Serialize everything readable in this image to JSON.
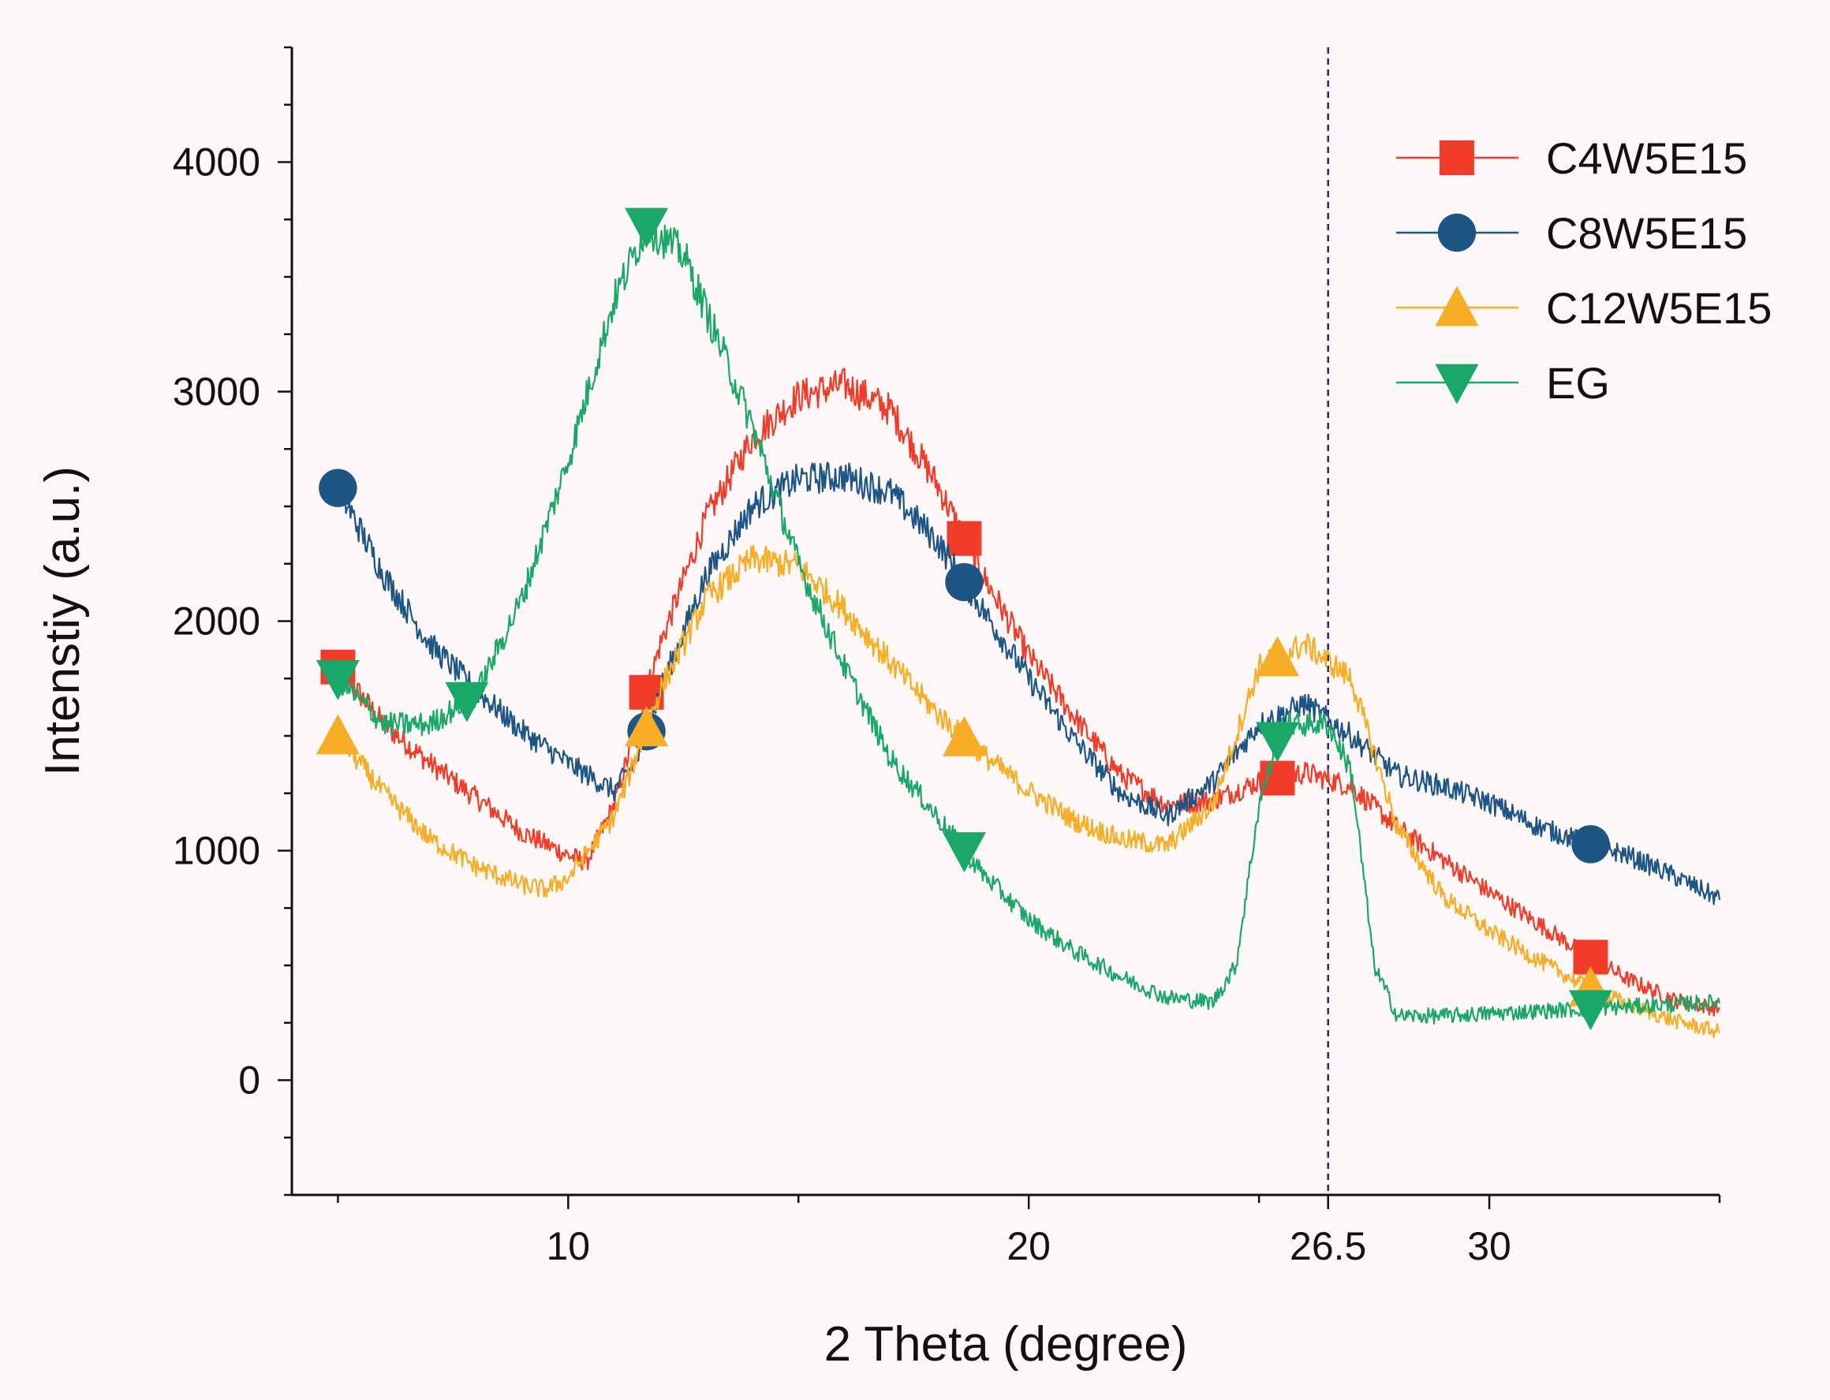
{
  "chart_data": {
    "type": "line",
    "xlabel": "2 Theta (degree)",
    "ylabel": "Intenstiy (a.u.)",
    "xlim": [
      4,
      35
    ],
    "ylim": [
      -500,
      4500
    ],
    "x_ticks": [
      10,
      20,
      26.5,
      30
    ],
    "y_ticks": [
      0,
      1000,
      2000,
      3000,
      4000
    ],
    "x_tick_labels": [
      "10",
      "20",
      "26.5",
      "30"
    ],
    "y_tick_labels": [
      "0",
      "1000",
      "2000",
      "3000",
      "4000"
    ],
    "reference_line": {
      "x": 26.5,
      "style": "dashed",
      "color": "#1f2a7a"
    },
    "legend_position": "top-right",
    "series": [
      {
        "name": "C4W5E15",
        "color": "#f03c28",
        "marker": "square",
        "points": [
          [
            5,
            1800
          ],
          [
            6,
            1550
          ],
          [
            7,
            1380
          ],
          [
            8,
            1230
          ],
          [
            9,
            1080
          ],
          [
            10,
            980
          ],
          [
            10.4,
            950
          ],
          [
            11,
            1200
          ],
          [
            11.5,
            1550
          ],
          [
            12,
            1900
          ],
          [
            13,
            2450
          ],
          [
            14,
            2800
          ],
          [
            15,
            2980
          ],
          [
            16,
            3030
          ],
          [
            17,
            2920
          ],
          [
            18,
            2600
          ],
          [
            19,
            2200
          ],
          [
            20,
            1850
          ],
          [
            21,
            1580
          ],
          [
            22,
            1330
          ],
          [
            23,
            1200
          ],
          [
            24,
            1220
          ],
          [
            25,
            1300
          ],
          [
            26,
            1340
          ],
          [
            27,
            1280
          ],
          [
            28,
            1100
          ],
          [
            29,
            960
          ],
          [
            30,
            820
          ],
          [
            31,
            690
          ],
          [
            32,
            560
          ],
          [
            33,
            440
          ],
          [
            34,
            350
          ],
          [
            35,
            310
          ]
        ],
        "markers_x": [
          5,
          11.7,
          18.6,
          25.4,
          32.2
        ]
      },
      {
        "name": "C8W5E15",
        "color": "#1d5585",
        "marker": "circle",
        "points": [
          [
            5,
            2580
          ],
          [
            6,
            2200
          ],
          [
            7,
            1900
          ],
          [
            8,
            1700
          ],
          [
            9,
            1520
          ],
          [
            10,
            1380
          ],
          [
            11,
            1260
          ],
          [
            11.5,
            1400
          ],
          [
            12,
            1700
          ],
          [
            13,
            2200
          ],
          [
            14,
            2500
          ],
          [
            15,
            2620
          ],
          [
            16,
            2630
          ],
          [
            17,
            2560
          ],
          [
            18,
            2350
          ],
          [
            19,
            2050
          ],
          [
            20,
            1750
          ],
          [
            21,
            1480
          ],
          [
            22,
            1250
          ],
          [
            23,
            1150
          ],
          [
            24,
            1300
          ],
          [
            25,
            1550
          ],
          [
            26,
            1640
          ],
          [
            27,
            1500
          ],
          [
            28,
            1330
          ],
          [
            29,
            1280
          ],
          [
            30,
            1210
          ],
          [
            31,
            1110
          ],
          [
            32,
            1040
          ],
          [
            33,
            980
          ],
          [
            34,
            890
          ],
          [
            35,
            790
          ]
        ],
        "markers_x": [
          5,
          11.7,
          18.6,
          32.2
        ]
      },
      {
        "name": "C12W5E15",
        "color": "#f7ad25",
        "marker": "triangle-up",
        "points": [
          [
            5,
            1500
          ],
          [
            6,
            1250
          ],
          [
            7,
            1050
          ],
          [
            8,
            930
          ],
          [
            9,
            850
          ],
          [
            9.5,
            830
          ],
          [
            10,
            880
          ],
          [
            11,
            1150
          ],
          [
            12,
            1700
          ],
          [
            13,
            2100
          ],
          [
            14,
            2270
          ],
          [
            15,
            2240
          ],
          [
            16,
            2050
          ],
          [
            17,
            1820
          ],
          [
            18,
            1600
          ],
          [
            19,
            1420
          ],
          [
            20,
            1260
          ],
          [
            21,
            1130
          ],
          [
            22,
            1050
          ],
          [
            23,
            1020
          ],
          [
            24,
            1200
          ],
          [
            25,
            1800
          ],
          [
            26,
            1900
          ],
          [
            27,
            1750
          ],
          [
            28,
            1100
          ],
          [
            29,
            800
          ],
          [
            30,
            650
          ],
          [
            31,
            530
          ],
          [
            32,
            420
          ],
          [
            33,
            330
          ],
          [
            34,
            260
          ],
          [
            35,
            210
          ]
        ],
        "markers_x": [
          5,
          11.7,
          18.6,
          25.4,
          32.2
        ]
      },
      {
        "name": "EG",
        "color": "#1aa868",
        "marker": "triangle-down",
        "points": [
          [
            5,
            1750
          ],
          [
            6,
            1550
          ],
          [
            7,
            1550
          ],
          [
            8,
            1680
          ],
          [
            9,
            2100
          ],
          [
            10,
            2700
          ],
          [
            11,
            3400
          ],
          [
            11.7,
            3720
          ],
          [
            12.5,
            3600
          ],
          [
            13,
            3350
          ],
          [
            14,
            2850
          ],
          [
            15,
            2250
          ],
          [
            16,
            1800
          ],
          [
            17,
            1400
          ],
          [
            18,
            1150
          ],
          [
            19,
            900
          ],
          [
            20,
            700
          ],
          [
            21,
            560
          ],
          [
            22,
            450
          ],
          [
            23,
            360
          ],
          [
            24,
            340
          ],
          [
            24.5,
            500
          ],
          [
            25,
            1200
          ],
          [
            25.5,
            1550
          ],
          [
            26.5,
            1550
          ],
          [
            27,
            1350
          ],
          [
            27.5,
            500
          ],
          [
            28,
            280
          ],
          [
            29,
            280
          ],
          [
            30,
            290
          ],
          [
            31,
            300
          ],
          [
            32,
            310
          ],
          [
            33,
            320
          ],
          [
            34,
            330
          ],
          [
            35,
            340
          ]
        ],
        "markers_x": [
          5,
          7.8,
          11.7,
          18.6,
          25.4,
          32.2
        ]
      }
    ]
  }
}
